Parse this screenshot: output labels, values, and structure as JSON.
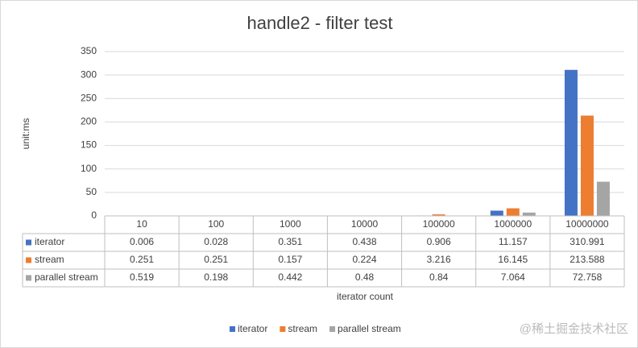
{
  "chart_data": {
    "type": "bar",
    "title": "handle2 - filter test",
    "y_label": "unit:ms",
    "x_label": "iterator count",
    "categories": [
      "10",
      "100",
      "1000",
      "10000",
      "100000",
      "1000000",
      "10000000"
    ],
    "series": [
      {
        "name": "iterator",
        "color": "#4472c4",
        "values": [
          0.006,
          0.028,
          0.351,
          0.438,
          0.906,
          11.157,
          310.991
        ]
      },
      {
        "name": "stream",
        "color": "#ed7d31",
        "values": [
          0.251,
          0.251,
          0.157,
          0.224,
          3.216,
          16.145,
          213.588
        ]
      },
      {
        "name": "parallel stream",
        "color": "#a5a5a5",
        "values": [
          0.519,
          0.198,
          0.442,
          0.48,
          0.84,
          7.064,
          72.758
        ]
      }
    ],
    "ylim": [
      0,
      350
    ],
    "yticks": [
      0,
      50,
      100,
      150,
      200,
      250,
      300,
      350
    ],
    "grid": true,
    "legend": "bottom",
    "data_table": true,
    "watermark": "@稀土掘金技术社区"
  }
}
